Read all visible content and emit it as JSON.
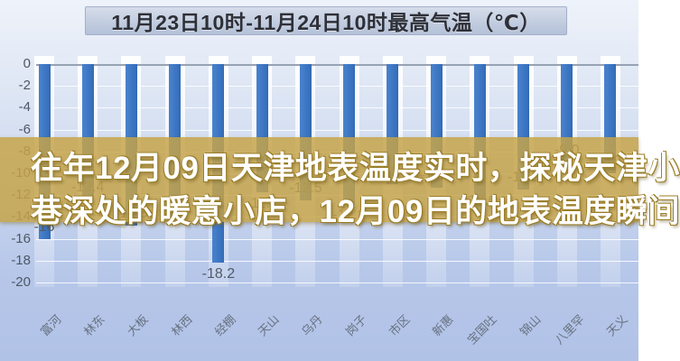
{
  "title": "11月23日10时-11月24日10时最高气温（℃）",
  "overlay": {
    "line1": "往年12月09日天津地表温度实时，探秘天津小",
    "line2": "巷深处的暖意小店，12月09日的地表温度瞬间"
  },
  "colors": {
    "bar": "#3d77c4",
    "overlay_band": "#c6a348",
    "overlay_text": "#ffffff",
    "title_text": "#2e3038",
    "axis_text": "#4f5864"
  },
  "chart_data": {
    "type": "bar",
    "title": "11月23日10时-11月24日10时最高气温（℃）",
    "categories": [
      "富河",
      "林东",
      "大板",
      "林西",
      "经棚",
      "天山",
      "乌丹",
      "岗子",
      "市区",
      "新惠",
      "宝国吐",
      "锦山",
      "八里罕",
      "天义"
    ],
    "values": [
      -16,
      -12.4,
      -14.8,
      -14.5,
      -18.2,
      -11.7,
      -12.5,
      -12.8,
      -11.0,
      -11.3,
      -13.6,
      -11.5,
      -9.0,
      -10
    ],
    "point_labels": [
      "-16",
      "-12.4",
      "-14.8",
      "-14.5",
      "-18.2",
      "-11.7",
      "-12.5",
      "-12.8",
      "-11.0",
      "-11.3",
      "-13.6",
      "-11.5",
      "-9.0",
      "-10"
    ],
    "label_above": [
      true,
      true,
      true,
      true,
      false,
      false,
      true,
      false,
      true,
      true,
      true,
      true,
      true,
      true
    ],
    "xlabel": "",
    "ylabel": "",
    "ylim": [
      -20,
      0
    ],
    "yticks": [
      0,
      -2,
      -4,
      -6,
      -8,
      -10,
      -12,
      -14,
      -16,
      -18,
      -20
    ],
    "grid": true,
    "legend": "none"
  }
}
